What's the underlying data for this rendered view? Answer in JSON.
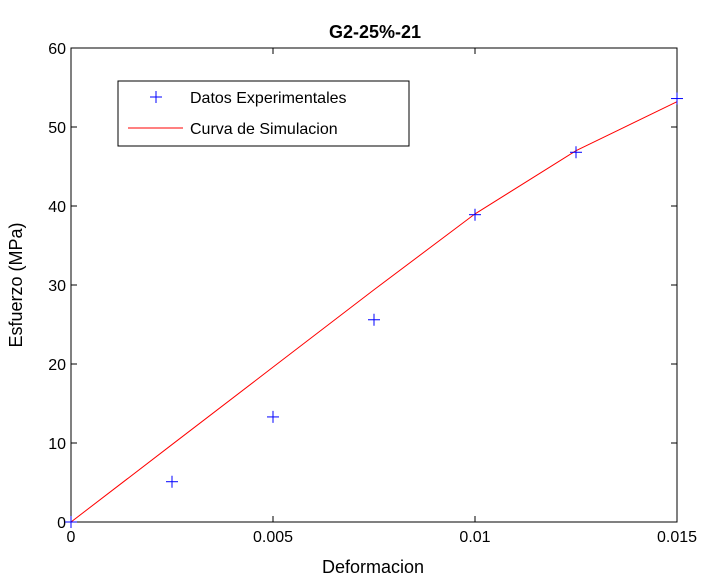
{
  "chart_data": {
    "type": "line",
    "title": "G2-25%-21",
    "xlabel": "Deformacion",
    "ylabel": "Esfuerzo (MPa)",
    "xlim": [
      0,
      0.015
    ],
    "ylim": [
      0,
      60
    ],
    "x_ticks": [
      0,
      0.005,
      0.01,
      0.015
    ],
    "x_tick_labels": [
      "0",
      "0.005",
      "0.01",
      "0.015"
    ],
    "y_ticks": [
      0,
      10,
      20,
      30,
      40,
      50,
      60
    ],
    "y_tick_labels": [
      "0",
      "10",
      "20",
      "30",
      "40",
      "50",
      "60"
    ],
    "grid": false,
    "legend_position": "top-left",
    "series": [
      {
        "name": "Datos Experimentales",
        "type": "scatter",
        "marker": "+",
        "color": "#0000ff",
        "x": [
          0,
          0.0025,
          0.005,
          0.0075,
          0.01,
          0.0125,
          0.015
        ],
        "y": [
          0,
          5.1,
          13.3,
          25.6,
          38.9,
          46.8,
          53.6
        ]
      },
      {
        "name": "Curva de Simulacion",
        "type": "line",
        "color": "#ff0000",
        "x": [
          0,
          0.0025,
          0.005,
          0.0075,
          0.01,
          0.0125,
          0.015
        ],
        "y": [
          0,
          9.8,
          19.6,
          29.4,
          39.0,
          47.0,
          53.2
        ]
      }
    ]
  }
}
